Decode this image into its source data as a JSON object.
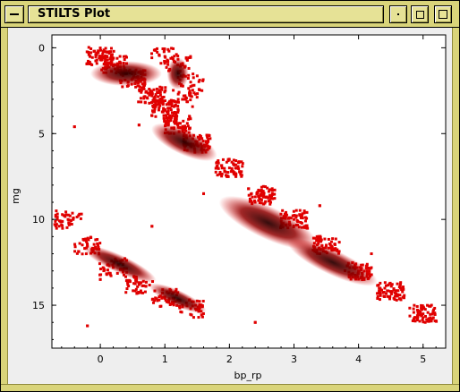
{
  "window": {
    "title": "STILTS Plot"
  },
  "icons": {
    "menu": "window-menu-icon",
    "minimize": "minimize-icon",
    "maximize": "maximize-icon",
    "close": "close-icon"
  },
  "colors": {
    "frame": "#d9d47a",
    "point": "#e00000",
    "dense": "#3a0000"
  },
  "chart_data": {
    "type": "scatter",
    "xlabel": "bp_rp",
    "ylabel": "mg",
    "x_ticks": [
      "0",
      "1",
      "2",
      "3",
      "4",
      "5"
    ],
    "y_ticks": [
      "0",
      "5",
      "10",
      "15"
    ],
    "xlim": [
      -0.75,
      5.35
    ],
    "ylim": [
      17.5,
      -0.75
    ],
    "y_inverted": true,
    "grid": false,
    "series": [
      {
        "points": [
          [
            0.0,
            0.5
          ],
          [
            0.2,
            1.0
          ],
          [
            0.5,
            1.8
          ],
          [
            0.8,
            2.8
          ],
          [
            1.0,
            3.6
          ],
          [
            1.2,
            4.5
          ],
          [
            1.5,
            5.6
          ],
          [
            2.0,
            7.0
          ],
          [
            2.5,
            8.6
          ],
          [
            3.0,
            10.0
          ],
          [
            3.5,
            11.5
          ],
          [
            4.0,
            13.0
          ],
          [
            4.5,
            14.2
          ],
          [
            5.0,
            15.5
          ],
          [
            1.0,
            0.5
          ],
          [
            1.2,
            1.0
          ],
          [
            1.4,
            2.0
          ],
          [
            1.3,
            3.0
          ],
          [
            -0.5,
            10.0
          ],
          [
            -0.2,
            11.5
          ],
          [
            0.2,
            12.8
          ],
          [
            0.6,
            13.8
          ],
          [
            1.0,
            14.6
          ],
          [
            1.4,
            15.2
          ],
          [
            0.6,
            4.5
          ],
          [
            -0.4,
            4.6
          ],
          [
            0.8,
            10.4
          ],
          [
            0.0,
            13.5
          ],
          [
            2.1,
            7.5
          ],
          [
            3.4,
            9.2
          ],
          [
            1.6,
            8.5
          ],
          [
            -0.2,
            16.2
          ],
          [
            2.4,
            16.0
          ],
          [
            4.2,
            12.0
          ]
        ]
      }
    ]
  }
}
